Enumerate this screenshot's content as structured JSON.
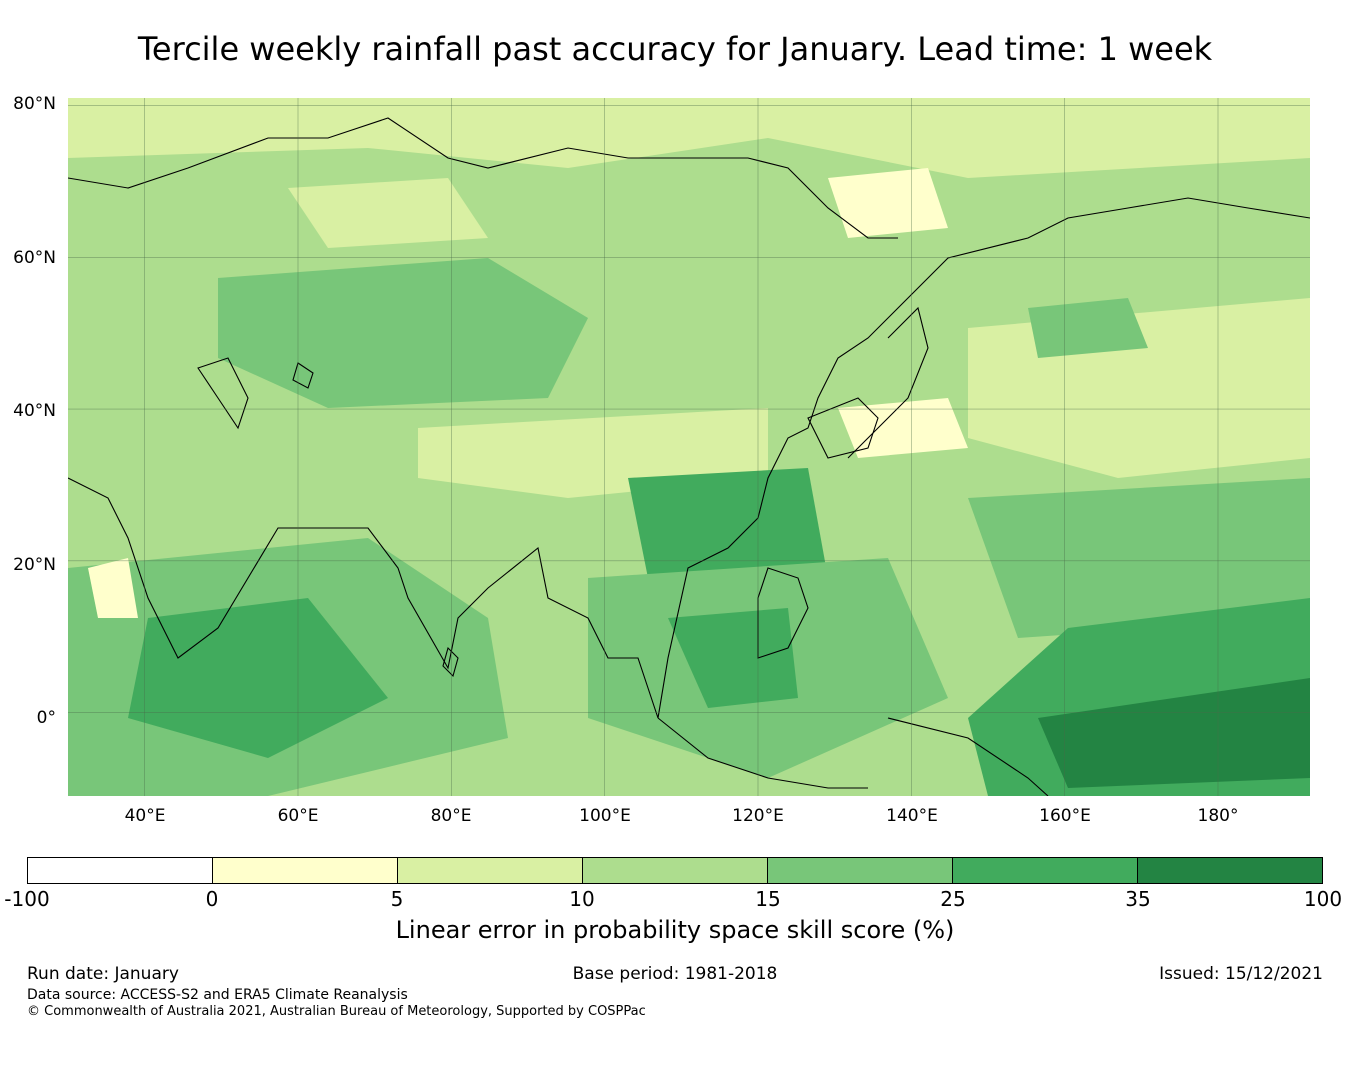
{
  "title": "Tercile weekly rainfall past accuracy for January. Lead time: 1 week",
  "map": {
    "lat_labels": [
      "80°N",
      "60°N",
      "40°N",
      "20°N",
      "0°"
    ],
    "lon_labels": [
      "40°E",
      "60°E",
      "80°E",
      "100°E",
      "120°E",
      "140°E",
      "160°E",
      "180°"
    ],
    "extent": {
      "lon_min": 30,
      "lon_max": 192,
      "lat_min": -11,
      "lat_max": 81
    },
    "palette": [
      "#ffffcc",
      "#d9f0a3",
      "#addd8e",
      "#78c679",
      "#41ab5d",
      "#238443"
    ]
  },
  "colorbar": {
    "ticks": [
      "-100",
      "0",
      "5",
      "10",
      "15",
      "25",
      "35",
      "100"
    ],
    "colors": [
      "#ffffff",
      "#ffffcc",
      "#d9f0a3",
      "#addd8e",
      "#78c679",
      "#41ab5d",
      "#238443"
    ],
    "label": "Linear error in probability space skill score (%)"
  },
  "footer": {
    "run_date": "Run date: January",
    "base_period": "Base period: 1981-2018",
    "issued": "Issued: 15/12/2021",
    "data_source": "Data source: ACCESS-S2 and ERA5 Climate Reanalysis",
    "copyright": "© Commonwealth of Australia 2021, Australian Bureau of Meteorology, Supported by COSPPac"
  }
}
